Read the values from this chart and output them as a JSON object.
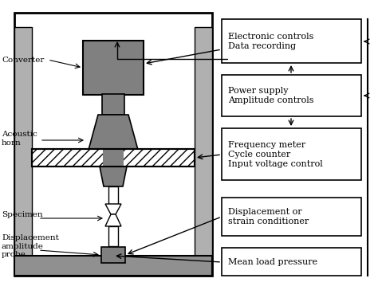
{
  "bg_color": "#ffffff",
  "frame_color": "#000000",
  "gray_dark": "#808080",
  "gray_medium": "#a0a0a0",
  "gray_light": "#c8c8c8",
  "gray_column": "#b0b0b0",
  "gray_base": "#909090",
  "hatch_color": "#555555",
  "labels": {
    "converter": "Converter",
    "acoustic_horn": "Acoustic\nhorn",
    "specimen": "Specimen",
    "displacement_probe": "Displacement\namplitude\nprobe",
    "box1": "Electronic controls\nData recording",
    "box2": "Power supply\nAmplitude controls",
    "box3": "Frequency meter\nCycle counter\nInput voltage control",
    "box4": "Displacement or\nstrain conditioner",
    "box5": "Mean load pressure"
  }
}
